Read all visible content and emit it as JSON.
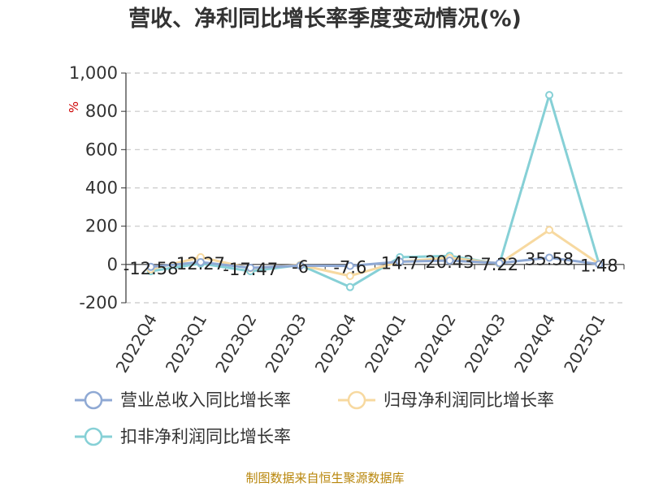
{
  "chart_data": {
    "type": "line",
    "title": "营收、净利同比增长率季度变动情况(%)",
    "ylabel": "%",
    "ylim": [
      -200,
      1000
    ],
    "yticks": [
      -200,
      0,
      200,
      400,
      600,
      800,
      1000
    ],
    "ytick_labels": [
      "-200",
      "0",
      "200",
      "400",
      "600",
      "800",
      "1,000"
    ],
    "categories": [
      "2022Q4",
      "2023Q1",
      "2023Q2",
      "2023Q3",
      "2023Q4",
      "2024Q1",
      "2024Q2",
      "2024Q3",
      "2024Q4",
      "2025Q1"
    ],
    "grid": true,
    "legend_position": "bottom",
    "series": [
      {
        "name": "营业总收入同比增长率",
        "color": "#8fa9d4",
        "values": [
          -12.58,
          12.27,
          -17.47,
          -6,
          -7.6,
          14.7,
          20.43,
          7.22,
          35.58,
          1.48
        ],
        "labels": [
          "-12.58",
          "12.27",
          "-17.47",
          "-6",
          "-7.6",
          "14.7",
          "20.43",
          "7.22",
          "35.58",
          "1.48"
        ]
      },
      {
        "name": "归母净利润同比增长率",
        "color": "#f7d9a0",
        "values": [
          -25,
          38,
          -20,
          -3,
          -60,
          15,
          35,
          5,
          180,
          3
        ]
      },
      {
        "name": "扣非净利润同比增长率",
        "color": "#86d0d6",
        "values": [
          -35,
          5,
          -35,
          -3,
          -118,
          38,
          45,
          3,
          885,
          2
        ]
      }
    ],
    "source": "制图数据来自恒生聚源数据库"
  }
}
